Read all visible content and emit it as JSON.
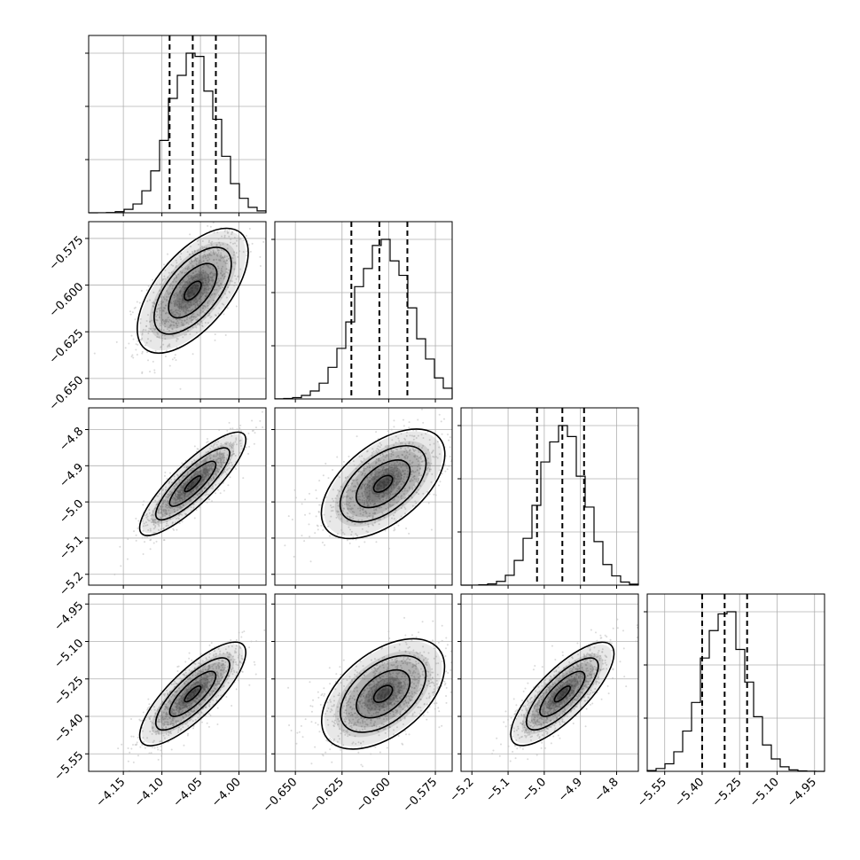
{
  "chart_data": {
    "type": "corner",
    "n_params": 4,
    "params": [
      {
        "index": 0,
        "lim": [
          -4.195,
          -3.965
        ],
        "ticks": [
          -4.15,
          -4.1,
          -4.05,
          -4.0
        ],
        "tick_labels": [
          "−4.15",
          "−4.10",
          "−4.05",
          "−4.00"
        ],
        "quantiles": [
          -4.09,
          -4.06,
          -4.03
        ],
        "mean": -4.06,
        "sd": 0.03
      },
      {
        "index": 1,
        "lim": [
          -0.661,
          -0.566
        ],
        "ticks": [
          -0.65,
          -0.625,
          -0.6,
          -0.575
        ],
        "tick_labels": [
          "−0.650",
          "−0.625",
          "−0.600",
          "−0.575"
        ],
        "quantiles": [
          -0.62,
          -0.605,
          -0.59
        ],
        "mean": -0.603,
        "sd": 0.015
      },
      {
        "index": 2,
        "lim": [
          -5.23,
          -4.74
        ],
        "ticks": [
          -5.2,
          -5.1,
          -5.0,
          -4.9,
          -4.8
        ],
        "tick_labels": [
          "−5.2",
          "−5.1",
          "−5.0",
          "−4.9",
          "−4.8"
        ],
        "quantiles": [
          -5.02,
          -4.95,
          -4.89
        ],
        "mean": -4.95,
        "sd": 0.062
      },
      {
        "index": 3,
        "lim": [
          -5.62,
          -4.91
        ],
        "ticks": [
          -5.55,
          -5.4,
          -5.25,
          -5.1,
          -4.95
        ],
        "tick_labels": [
          "−5.55",
          "−5.40",
          "−5.25",
          "−5.10",
          "−4.95"
        ],
        "quantiles": [
          -5.4,
          -5.31,
          -5.22
        ],
        "mean": -5.31,
        "sd": 0.09
      }
    ],
    "correlations": [
      [
        0,
        1,
        0.62
      ],
      [
        0,
        2,
        0.85
      ],
      [
        0,
        3,
        0.8
      ],
      [
        1,
        2,
        0.55
      ],
      [
        1,
        3,
        0.5
      ],
      [
        2,
        3,
        0.78
      ]
    ],
    "histogram_bins": 20,
    "contour_levels": 3,
    "colors": {
      "hist": "#000000",
      "scatter": "#bbbbbb",
      "contour": "#000000",
      "grid": "#b0b0b0",
      "frame": "#000000"
    },
    "grid": true,
    "title": "",
    "legend": null
  }
}
